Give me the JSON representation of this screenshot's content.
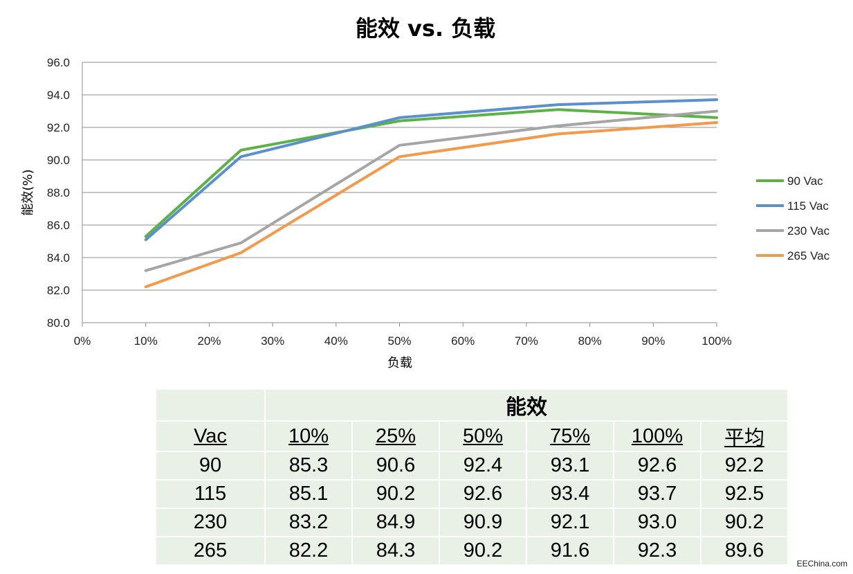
{
  "chart_data": {
    "type": "line",
    "title": "能效 vs. 负载",
    "xlabel": "负载",
    "ylabel": "能效(%)",
    "x": [
      10,
      25,
      50,
      75,
      100
    ],
    "xlim": [
      0,
      100
    ],
    "ylim": [
      80,
      96
    ],
    "xticks": [
      "0%",
      "10%",
      "20%",
      "30%",
      "40%",
      "50%",
      "60%",
      "70%",
      "80%",
      "90%",
      "100%"
    ],
    "yticks": [
      "80.0",
      "82.0",
      "84.0",
      "86.0",
      "88.0",
      "90.0",
      "92.0",
      "94.0",
      "96.0"
    ],
    "grid": "horizontal",
    "legend_position": "right",
    "series": [
      {
        "name": "90 Vac",
        "color": "#5cb245",
        "values": [
          85.3,
          90.6,
          92.4,
          93.1,
          92.6
        ]
      },
      {
        "name": "115 Vac",
        "color": "#5b8fcf",
        "values": [
          85.1,
          90.2,
          92.6,
          93.4,
          93.7
        ]
      },
      {
        "name": "230 Vac",
        "color": "#a5a5a5",
        "values": [
          83.2,
          84.9,
          90.9,
          92.1,
          93.0
        ]
      },
      {
        "name": "265 Vac",
        "color": "#f39a4a",
        "values": [
          82.2,
          84.3,
          90.2,
          91.6,
          92.3
        ]
      }
    ]
  },
  "table": {
    "group_header": "能效",
    "headers": [
      "Vac",
      "10%",
      "25%",
      "50%",
      "75%",
      "100%",
      "平均"
    ],
    "rows": [
      [
        "90",
        "85.3",
        "90.6",
        "92.4",
        "93.1",
        "92.6",
        "92.2"
      ],
      [
        "115",
        "85.1",
        "90.2",
        "92.6",
        "93.4",
        "93.7",
        "92.5"
      ],
      [
        "230",
        "83.2",
        "84.9",
        "90.9",
        "92.1",
        "93.0",
        "90.2"
      ],
      [
        "265",
        "82.2",
        "84.3",
        "90.2",
        "91.6",
        "92.3",
        "89.6"
      ]
    ]
  },
  "watermark": "EEChina.com"
}
